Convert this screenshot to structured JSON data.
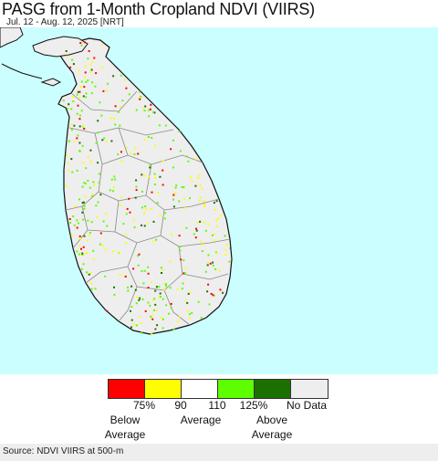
{
  "header": {
    "title": "PASG from 1-Month Cropland NDVI (VIIRS)",
    "date_range": "Jul. 12 - Aug. 12, 2025 [NRT]"
  },
  "map": {
    "region": "Sri Lanka",
    "colors": {
      "ocean": "#cbfefe",
      "land_no_data": "#eeeeee",
      "boundary": "#888888",
      "coast": "#111111"
    }
  },
  "legend": {
    "colors": [
      "#fe0000",
      "#fefe00",
      "#ffffff",
      "#5cfe00",
      "#1c7000",
      "#eeeeee"
    ],
    "tick_labels": [
      "75%",
      "90",
      "110",
      "125%",
      "No Data"
    ],
    "below_line1": "Below",
    "below_line2": "Average",
    "average": "Average",
    "above_line1": "Above",
    "above_line2": "Average"
  },
  "footer": {
    "source": "Source: NDVI VIIRS at 500-m"
  }
}
